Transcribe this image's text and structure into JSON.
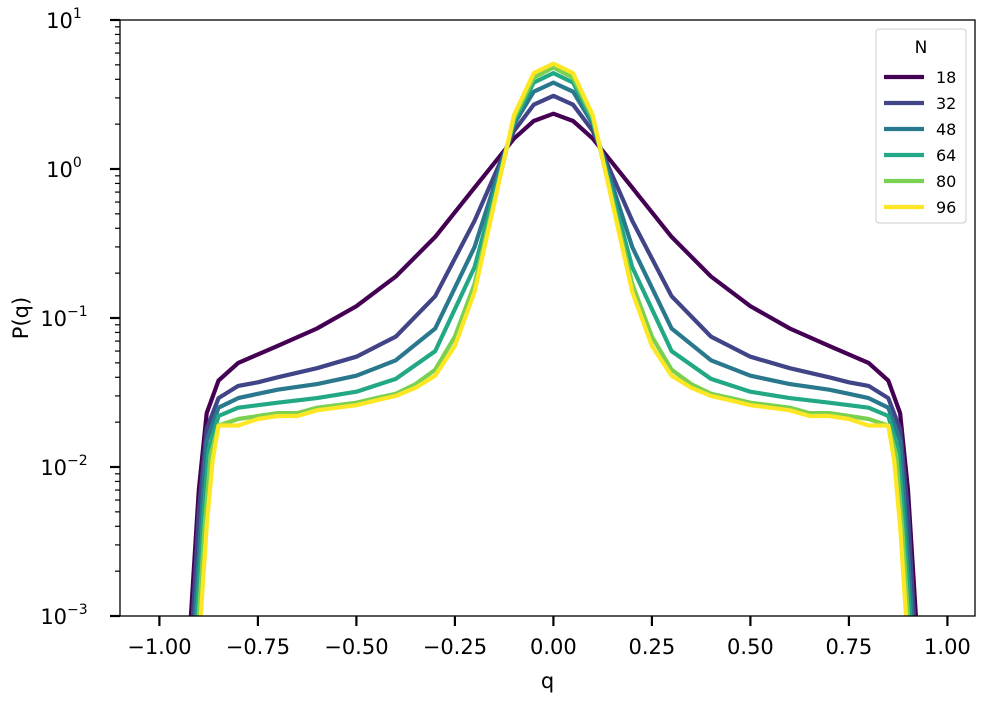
{
  "chart_data": {
    "type": "line",
    "title": "",
    "xlabel": "q",
    "ylabel": "P(q)",
    "xlim": [
      -1.1,
      1.07
    ],
    "ylim": [
      0.001,
      10
    ],
    "yscale": "log",
    "grid": false,
    "x_ticks": [
      -1.0,
      -0.75,
      -0.5,
      -0.25,
      0.0,
      0.25,
      0.5,
      0.75,
      1.0
    ],
    "x_tick_labels": [
      "−1.00",
      "−0.75",
      "−0.50",
      "−0.25",
      "0.00",
      "0.25",
      "0.50",
      "0.75",
      "1.00"
    ],
    "y_ticks": [
      0.001,
      0.01,
      0.1,
      1,
      10
    ],
    "y_tick_labels": [
      {
        "base": "10",
        "exp": "−3"
      },
      {
        "base": "10",
        "exp": "−2"
      },
      {
        "base": "10",
        "exp": "−1"
      },
      {
        "base": "10",
        "exp": "0"
      },
      {
        "base": "10",
        "exp": "1"
      }
    ],
    "legend": {
      "title": "N",
      "position": "top-right"
    },
    "series": [
      {
        "name": "18",
        "color": "#440154",
        "x": [
          -0.92,
          -0.9,
          -0.88,
          -0.85,
          -0.8,
          -0.75,
          -0.7,
          -0.6,
          -0.5,
          -0.4,
          -0.3,
          -0.2,
          -0.1,
          -0.05,
          0.0,
          0.05,
          0.1,
          0.2,
          0.3,
          0.4,
          0.5,
          0.6,
          0.7,
          0.75,
          0.8,
          0.85,
          0.88,
          0.9,
          0.92
        ],
        "y": [
          0.001,
          0.007,
          0.023,
          0.038,
          0.05,
          0.057,
          0.065,
          0.085,
          0.12,
          0.19,
          0.35,
          0.75,
          1.6,
          2.1,
          2.35,
          2.1,
          1.6,
          0.75,
          0.35,
          0.19,
          0.12,
          0.085,
          0.065,
          0.057,
          0.05,
          0.038,
          0.023,
          0.007,
          0.001
        ]
      },
      {
        "name": "32",
        "color": "#414487",
        "x": [
          -0.915,
          -0.9,
          -0.88,
          -0.85,
          -0.8,
          -0.75,
          -0.7,
          -0.6,
          -0.5,
          -0.4,
          -0.3,
          -0.2,
          -0.1,
          -0.05,
          0.0,
          0.05,
          0.1,
          0.2,
          0.3,
          0.4,
          0.5,
          0.6,
          0.7,
          0.75,
          0.8,
          0.85,
          0.88,
          0.9,
          0.915
        ],
        "y": [
          0.001,
          0.005,
          0.018,
          0.029,
          0.035,
          0.037,
          0.04,
          0.046,
          0.055,
          0.075,
          0.14,
          0.45,
          1.8,
          2.7,
          3.1,
          2.7,
          1.8,
          0.45,
          0.14,
          0.075,
          0.055,
          0.046,
          0.04,
          0.037,
          0.035,
          0.029,
          0.018,
          0.005,
          0.001
        ]
      },
      {
        "name": "48",
        "color": "#2a788e",
        "x": [
          -0.91,
          -0.895,
          -0.88,
          -0.85,
          -0.8,
          -0.75,
          -0.7,
          -0.6,
          -0.5,
          -0.4,
          -0.3,
          -0.2,
          -0.1,
          -0.05,
          0.0,
          0.05,
          0.1,
          0.2,
          0.3,
          0.4,
          0.5,
          0.6,
          0.7,
          0.75,
          0.8,
          0.85,
          0.88,
          0.895,
          0.91
        ],
        "y": [
          0.001,
          0.004,
          0.015,
          0.025,
          0.029,
          0.031,
          0.033,
          0.036,
          0.041,
          0.052,
          0.085,
          0.3,
          2.0,
          3.3,
          3.8,
          3.3,
          2.0,
          0.3,
          0.085,
          0.052,
          0.041,
          0.036,
          0.033,
          0.031,
          0.029,
          0.025,
          0.015,
          0.004,
          0.001
        ]
      },
      {
        "name": "64",
        "color": "#22a884",
        "x": [
          -0.905,
          -0.89,
          -0.875,
          -0.85,
          -0.8,
          -0.75,
          -0.7,
          -0.6,
          -0.5,
          -0.4,
          -0.3,
          -0.2,
          -0.1,
          -0.05,
          0.0,
          0.05,
          0.1,
          0.2,
          0.3,
          0.4,
          0.5,
          0.6,
          0.7,
          0.75,
          0.8,
          0.85,
          0.875,
          0.89,
          0.905
        ],
        "y": [
          0.001,
          0.004,
          0.013,
          0.022,
          0.025,
          0.026,
          0.027,
          0.029,
          0.032,
          0.039,
          0.06,
          0.22,
          2.1,
          3.8,
          4.4,
          3.8,
          2.1,
          0.22,
          0.06,
          0.039,
          0.032,
          0.029,
          0.027,
          0.026,
          0.025,
          0.022,
          0.013,
          0.004,
          0.001
        ]
      },
      {
        "name": "80",
        "color": "#7ad151",
        "x": [
          -0.9,
          -0.885,
          -0.87,
          -0.85,
          -0.8,
          -0.75,
          -0.7,
          -0.65,
          -0.6,
          -0.55,
          -0.5,
          -0.45,
          -0.4,
          -0.35,
          -0.3,
          -0.25,
          -0.2,
          -0.1,
          -0.05,
          0.0,
          0.05,
          0.1,
          0.2,
          0.25,
          0.3,
          0.35,
          0.4,
          0.45,
          0.5,
          0.55,
          0.6,
          0.65,
          0.7,
          0.75,
          0.8,
          0.85,
          0.87,
          0.885,
          0.9
        ],
        "y": [
          0.001,
          0.004,
          0.012,
          0.019,
          0.021,
          0.022,
          0.023,
          0.023,
          0.025,
          0.026,
          0.027,
          0.029,
          0.031,
          0.036,
          0.045,
          0.075,
          0.17,
          2.2,
          4.1,
          4.8,
          4.1,
          2.2,
          0.17,
          0.075,
          0.045,
          0.036,
          0.031,
          0.029,
          0.027,
          0.026,
          0.025,
          0.023,
          0.023,
          0.022,
          0.021,
          0.019,
          0.012,
          0.004,
          0.001
        ]
      },
      {
        "name": "96",
        "color": "#fde725",
        "x": [
          -0.895,
          -0.88,
          -0.865,
          -0.85,
          -0.8,
          -0.75,
          -0.7,
          -0.65,
          -0.6,
          -0.55,
          -0.5,
          -0.45,
          -0.4,
          -0.35,
          -0.3,
          -0.25,
          -0.2,
          -0.1,
          -0.05,
          0.0,
          0.05,
          0.1,
          0.2,
          0.25,
          0.3,
          0.35,
          0.4,
          0.45,
          0.5,
          0.55,
          0.6,
          0.65,
          0.7,
          0.75,
          0.8,
          0.85,
          0.865,
          0.88,
          0.895
        ],
        "y": [
          0.001,
          0.004,
          0.011,
          0.019,
          0.019,
          0.021,
          0.022,
          0.022,
          0.024,
          0.025,
          0.026,
          0.028,
          0.03,
          0.034,
          0.041,
          0.065,
          0.15,
          2.3,
          4.4,
          5.1,
          4.4,
          2.3,
          0.15,
          0.065,
          0.041,
          0.034,
          0.03,
          0.028,
          0.026,
          0.025,
          0.024,
          0.022,
          0.022,
          0.021,
          0.019,
          0.019,
          0.011,
          0.004,
          0.001
        ]
      }
    ]
  }
}
